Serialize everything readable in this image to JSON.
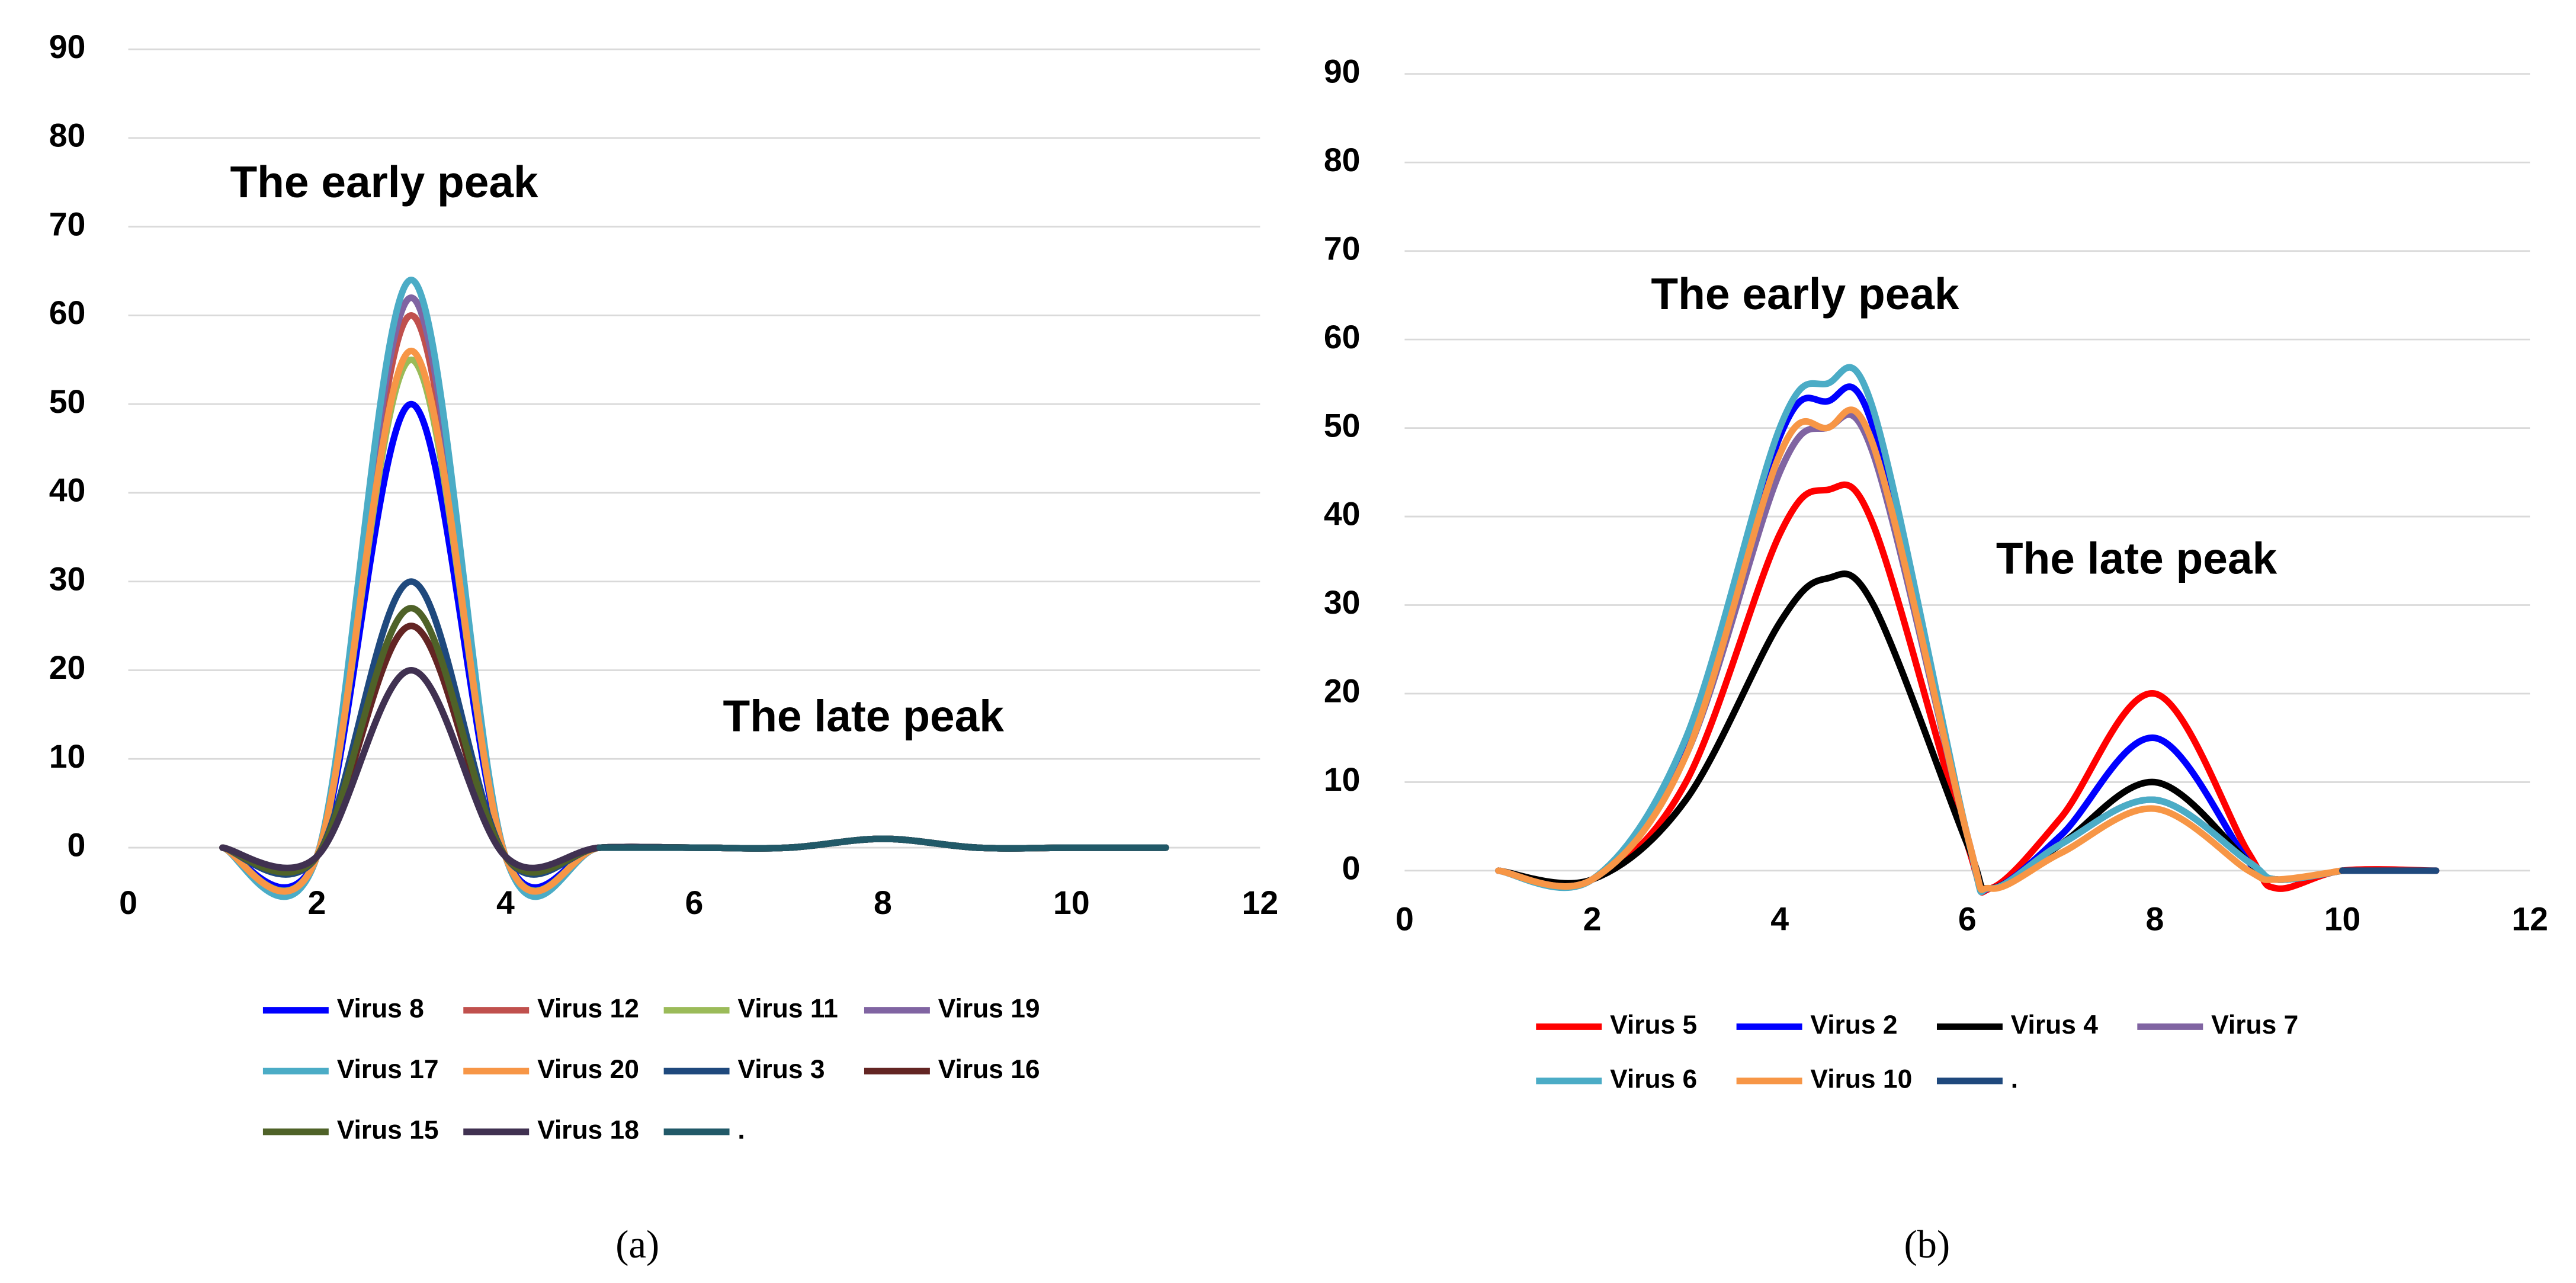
{
  "chart_data": [
    {
      "type": "line",
      "caption": "(a)",
      "annotations": [
        "The early peak",
        "The late peak"
      ],
      "x": [
        1,
        2,
        3,
        4,
        5,
        6,
        7,
        8,
        9,
        10,
        11
      ],
      "xlim": [
        0,
        12
      ],
      "xticks": [
        0,
        2,
        4,
        6,
        8,
        10,
        12
      ],
      "ylim": [
        0,
        90
      ],
      "yticks": [
        0,
        10,
        20,
        30,
        40,
        50,
        60,
        70,
        80,
        90
      ],
      "grid": true,
      "legend": "bottom",
      "series": [
        {
          "name": "Virus 8",
          "color": "#0000ff",
          "values": [
            0,
            -1,
            50,
            -1,
            0,
            0,
            0,
            1,
            0,
            0,
            0
          ]
        },
        {
          "name": "Virus 12",
          "color": "#c0504d",
          "values": [
            0,
            -1,
            60,
            -1,
            0,
            0,
            0,
            1,
            0,
            0,
            0
          ]
        },
        {
          "name": "Virus 11",
          "color": "#9bbb59",
          "values": [
            0,
            -1,
            55,
            -1,
            0,
            0,
            0,
            1,
            0,
            0,
            0
          ]
        },
        {
          "name": "Virus 19",
          "color": "#8064a2",
          "values": [
            0,
            -1,
            62,
            -1,
            0,
            0,
            0,
            1,
            0,
            0,
            0
          ]
        },
        {
          "name": "Virus 17",
          "color": "#4bacc6",
          "values": [
            0,
            -1,
            64,
            -1,
            0,
            0,
            0,
            1,
            0,
            0,
            0
          ]
        },
        {
          "name": "Virus 20",
          "color": "#f79646",
          "values": [
            0,
            -1,
            56,
            -1,
            0,
            0,
            0,
            1,
            0,
            0,
            0
          ]
        },
        {
          "name": "Virus 3",
          "color": "#1f497d",
          "values": [
            0,
            -1,
            30,
            -1,
            0,
            0,
            0,
            1,
            0,
            0,
            0
          ]
        },
        {
          "name": "Virus 16",
          "color": "#632523",
          "values": [
            0,
            -1,
            25,
            -1,
            0,
            0,
            0,
            1,
            0,
            0,
            0
          ]
        },
        {
          "name": "Virus 15",
          "color": "#4f6228",
          "values": [
            0,
            -1,
            27,
            -1,
            0,
            0,
            0,
            1,
            0,
            0,
            0
          ]
        },
        {
          "name": "Virus 18",
          "color": "#403151",
          "values": [
            0,
            -1,
            20,
            -1,
            0,
            0,
            0,
            1,
            0,
            0,
            0
          ]
        },
        {
          "name": ".",
          "color": "#215968",
          "values": [
            null,
            null,
            null,
            null,
            0,
            0,
            0,
            1,
            0,
            0,
            0
          ]
        }
      ]
    },
    {
      "type": "line",
      "caption": "(b)",
      "annotations": [
        "The early peak",
        "The late peak"
      ],
      "x": [
        1,
        2,
        3,
        4,
        4.5,
        5,
        6,
        6.25,
        7,
        8,
        9,
        9.3,
        10,
        11
      ],
      "xlim": [
        0,
        12
      ],
      "xticks": [
        0,
        2,
        4,
        6,
        8,
        10,
        12
      ],
      "ylim": [
        0,
        90
      ],
      "yticks": [
        0,
        10,
        20,
        30,
        40,
        50,
        60,
        70,
        80,
        90
      ],
      "grid": true,
      "legend": "bottom",
      "series": [
        {
          "name": "Virus 5",
          "color": "#ff0000",
          "values": [
            0,
            -1,
            10,
            38,
            43,
            39,
            3,
            -2,
            6,
            20,
            2,
            -2,
            0,
            0
          ]
        },
        {
          "name": "Virus 2",
          "color": "#0000ff",
          "values": [
            0,
            -1,
            14,
            49,
            53,
            50,
            4,
            -2,
            4,
            15,
            1,
            -1,
            0,
            null
          ]
        },
        {
          "name": "Virus 4",
          "color": "#000000",
          "values": [
            0,
            -1,
            8,
            28,
            33,
            30,
            3,
            -2,
            3,
            10,
            1,
            -1,
            0,
            null
          ]
        },
        {
          "name": "Virus 7",
          "color": "#8064a2",
          "values": [
            0,
            -1,
            13,
            45,
            50,
            47,
            4,
            -2,
            3,
            8,
            1,
            -1,
            0,
            null
          ]
        },
        {
          "name": "Virus 6",
          "color": "#4bacc6",
          "values": [
            0,
            -1,
            15,
            50,
            55,
            52,
            4,
            -2,
            3,
            8,
            1,
            -1,
            0,
            null
          ]
        },
        {
          "name": "Virus 10",
          "color": "#f79646",
          "values": [
            0,
            -1,
            13,
            47,
            50,
            48,
            4,
            -2,
            2,
            7,
            0,
            -1,
            0,
            null
          ]
        },
        {
          "name": ".",
          "color": "#1f497d",
          "values": [
            null,
            null,
            null,
            null,
            null,
            null,
            null,
            null,
            null,
            null,
            null,
            null,
            0,
            0
          ]
        }
      ]
    }
  ]
}
